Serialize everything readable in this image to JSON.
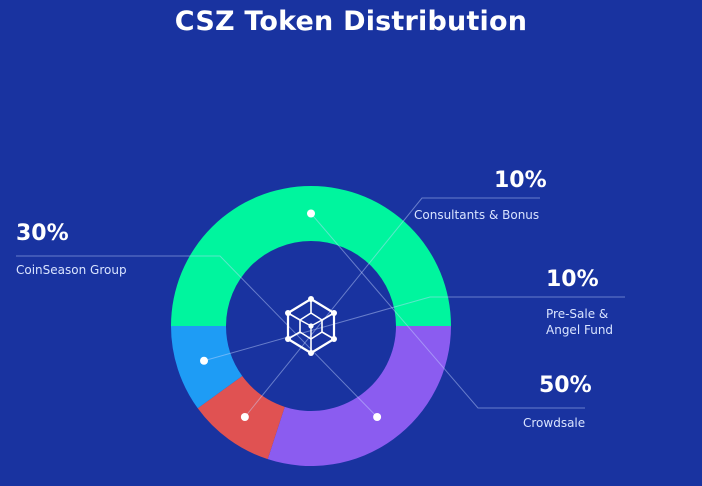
{
  "title": "CSZ Token Distribution",
  "chart_data": {
    "type": "pie",
    "title": "CSZ Token Distribution",
    "slices": [
      {
        "value": 50,
        "label_pct": "50%",
        "label_lines": [
          "Crowdsale"
        ],
        "color": "#00f59e"
      },
      {
        "value": 30,
        "label_pct": "30%",
        "label_lines": [
          "CoinSeason Group"
        ],
        "color": "#8b5cf0"
      },
      {
        "value": 10,
        "label_pct": "10%",
        "label_lines": [
          "Consultants & Bonus"
        ],
        "color": "#e05252"
      },
      {
        "value": 10,
        "label_pct": "10%",
        "label_lines": [
          "Pre-Sale &",
          "Angel Fund"
        ],
        "color": "#1e9cf5"
      }
    ],
    "center_icon": "cube-network-icon",
    "legend": "callouts"
  }
}
